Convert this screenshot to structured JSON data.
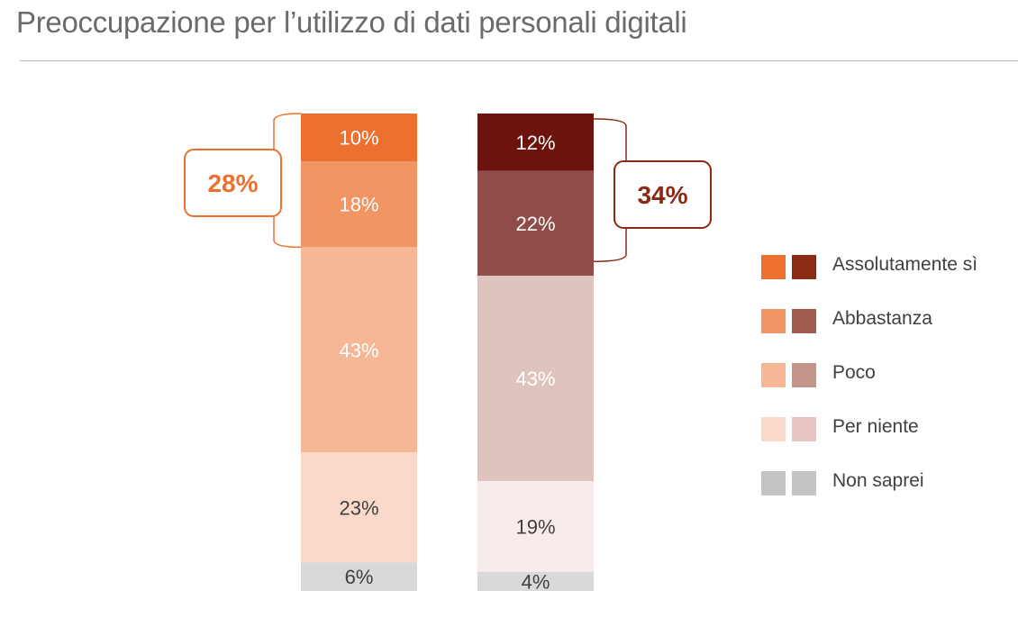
{
  "title": "Preoccupazione per l’utilizzo di dati personali digitali",
  "chart_data": {
    "type": "bar",
    "stacked": true,
    "series": [
      {
        "name": "Bar 1",
        "segments": [
          {
            "category": "Assolutamente sì",
            "value": 10,
            "label": "10%",
            "color": "#EC7030",
            "text_color": "#ffffff"
          },
          {
            "category": "Abbastanza",
            "value": 18,
            "label": "18%",
            "color": "#F29565",
            "text_color": "#ffffff"
          },
          {
            "category": "Poco",
            "value": 43,
            "label": "43%",
            "color": "#F5B796",
            "text_color": "#ffffff"
          },
          {
            "category": "Per niente",
            "value": 23,
            "label": "23%",
            "color": "#F9DACA",
            "text_color": "#404040"
          },
          {
            "category": "Non saprei",
            "value": 6,
            "label": "6%",
            "color": "#D9D9D9",
            "text_color": "#404040"
          }
        ],
        "bracket_label": "28%",
        "bracket_color": "#EC7030"
      },
      {
        "name": "Bar 2",
        "segments": [
          {
            "category": "Assolutamente sì",
            "value": 12,
            "label": "12%",
            "color": "#6B130C",
            "text_color": "#ffffff"
          },
          {
            "category": "Abbastanza",
            "value": 22,
            "label": "22%",
            "color": "#8F4C48",
            "text_color": "#ffffff"
          },
          {
            "category": "Poco",
            "value": 43,
            "label": "43%",
            "color": "#DEC3BE",
            "text_color": "#ffffff"
          },
          {
            "category": "Per niente",
            "value": 19,
            "label": "19%",
            "color": "#F7ECEB",
            "text_color": "#404040"
          },
          {
            "category": "Non saprei",
            "value": 4,
            "label": "4%",
            "color": "#D9D9D9",
            "text_color": "#404040"
          }
        ],
        "bracket_label": "34%",
        "bracket_color": "#8B2A14"
      }
    ],
    "legend": {
      "placement": "right",
      "entries": [
        {
          "label": "Assolutamente sì",
          "colors": [
            "#EC7030",
            "#8B2A14"
          ]
        },
        {
          "label": "Abbastanza",
          "colors": [
            "#F29565",
            "#A05A50"
          ]
        },
        {
          "label": "Poco",
          "colors": [
            "#F5B796",
            "#C4948A"
          ]
        },
        {
          "label": "Per niente",
          "colors": [
            "#F9DACA",
            "#E7C5C5"
          ]
        },
        {
          "label": "Non saprei",
          "colors": [
            "#C4C4C4",
            "#C4C4C4"
          ]
        }
      ]
    },
    "ylim": [
      0,
      100
    ]
  }
}
